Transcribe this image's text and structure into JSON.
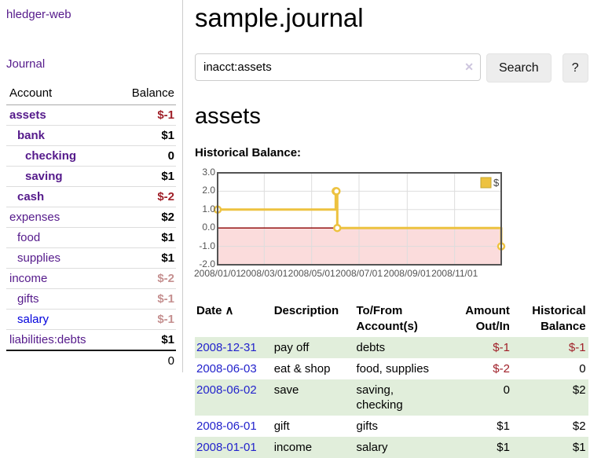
{
  "colors": {
    "link_purple": "#551a8b",
    "link_blue": "#0000dd",
    "date_blue": "#2323cc",
    "negative": "#a02029",
    "negative_faded": "#c59090",
    "row_green": "#e1eedb"
  },
  "sidebar": {
    "brand": "hledger-web",
    "nav": [
      {
        "label": "Journal"
      }
    ],
    "accounts_table": {
      "headers": [
        "Account",
        "Balance"
      ],
      "rows": [
        {
          "name": "assets",
          "indent": 1,
          "bold": true,
          "balance": "$-1",
          "balance_color": "negative"
        },
        {
          "name": "bank",
          "indent": 2,
          "bold": true,
          "balance": "$1",
          "balance_color": "normal"
        },
        {
          "name": "checking",
          "indent": 3,
          "bold": true,
          "balance": "0",
          "balance_color": "normal"
        },
        {
          "name": "saving",
          "indent": 3,
          "bold": true,
          "balance": "$1",
          "balance_color": "normal"
        },
        {
          "name": "cash",
          "indent": 2,
          "bold": true,
          "balance": "$-2",
          "balance_color": "negative"
        },
        {
          "name": "expenses",
          "indent": 1,
          "bold": false,
          "balance": "$2",
          "balance_color": "normal"
        },
        {
          "name": "food",
          "indent": 2,
          "bold": false,
          "balance": "$1",
          "balance_color": "normal"
        },
        {
          "name": "supplies",
          "indent": 2,
          "bold": false,
          "balance": "$1",
          "balance_color": "normal"
        },
        {
          "name": "income",
          "indent": 1,
          "bold": false,
          "balance": "$-2",
          "balance_color": "negative-faded"
        },
        {
          "name": "gifts",
          "indent": 2,
          "bold": false,
          "balance": "$-1",
          "balance_color": "negative-faded"
        },
        {
          "name": "salary",
          "indent": 2,
          "bold": false,
          "link_color": "blue",
          "balance": "$-1",
          "balance_color": "negative-faded"
        },
        {
          "name": "liabilities:debts",
          "indent": 1,
          "bold": false,
          "balance": "$1",
          "balance_color": "normal"
        }
      ],
      "total": "0"
    }
  },
  "header": {
    "title": "sample.journal"
  },
  "search": {
    "value": "inacct:assets",
    "clear_icon": "✕",
    "button": "Search",
    "help_button": "?"
  },
  "main": {
    "account_heading": "assets",
    "chart_label": "Historical Balance:"
  },
  "chart_data": {
    "type": "line",
    "step": true,
    "title": "Historical Balance:",
    "xlim": [
      "2008-01-01",
      "2008-12-31"
    ],
    "ylim": [
      -2,
      3
    ],
    "x_ticks": [
      {
        "date": "2008-01-01",
        "label": "2008/01/01"
      },
      {
        "date": "2008-03-01",
        "label": "2008/03/01"
      },
      {
        "date": "2008-05-01",
        "label": "2008/05/01"
      },
      {
        "date": "2008-07-01",
        "label": "2008/07/01"
      },
      {
        "date": "2008-09-01",
        "label": "2008/09/01"
      },
      {
        "date": "2008-11-01",
        "label": "2008/11/01"
      }
    ],
    "y_ticks": [
      3.0,
      2.0,
      1.0,
      0.0,
      -1.0,
      -2.0
    ],
    "series": [
      {
        "name": "$",
        "color": "#edc240",
        "points": [
          [
            "2008-01-01",
            1
          ],
          [
            "2008-06-01",
            2
          ],
          [
            "2008-06-02",
            2
          ],
          [
            "2008-06-03",
            0
          ],
          [
            "2008-12-31",
            -1
          ]
        ]
      }
    ],
    "legend_position": "top-right",
    "grid": true,
    "grid_color": "#dddddd",
    "border_color": "#545454",
    "negative_fill": "#fbdcdc",
    "zero_line_color": "#8b0000"
  },
  "register": {
    "headers": {
      "date": "Date",
      "description": "Description",
      "accounts": "To/From Account(s)",
      "amount": "Amount Out/In",
      "balance": "Historical Balance"
    },
    "sort_icon": "∧",
    "rows": [
      {
        "date": "2008-12-31",
        "description": "pay off",
        "accounts": "debts",
        "amount": "$-1",
        "amount_neg": true,
        "balance": "$-1",
        "balance_neg": true
      },
      {
        "date": "2008-06-03",
        "description": "eat & shop",
        "accounts": "food, supplies",
        "amount": "$-2",
        "amount_neg": true,
        "balance": "0",
        "balance_neg": false
      },
      {
        "date": "2008-06-02",
        "description": "save",
        "accounts": "saving, checking",
        "amount": "0",
        "amount_neg": false,
        "balance": "$2",
        "balance_neg": false
      },
      {
        "date": "2008-06-01",
        "description": "gift",
        "accounts": "gifts",
        "amount": "$1",
        "amount_neg": false,
        "balance": "$2",
        "balance_neg": false
      },
      {
        "date": "2008-01-01",
        "description": "income",
        "accounts": "salary",
        "amount": "$1",
        "amount_neg": false,
        "balance": "$1",
        "balance_neg": false
      }
    ]
  }
}
